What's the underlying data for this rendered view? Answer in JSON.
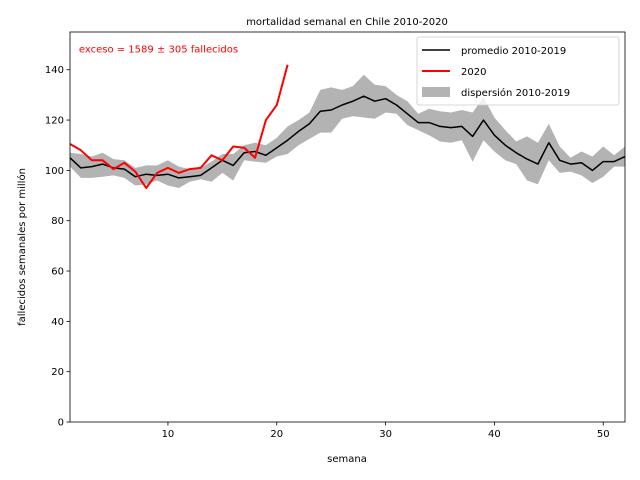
{
  "chart_data": {
    "type": "line",
    "title": "mortalidad semanal en Chile 2010-2020",
    "xlabel": "semana",
    "ylabel": "fallecidos semanales por millón",
    "xlim": [
      1,
      52
    ],
    "ylim": [
      0,
      155
    ],
    "xticks": [
      10,
      20,
      30,
      40,
      50
    ],
    "yticks": [
      0,
      20,
      40,
      60,
      80,
      100,
      120,
      140
    ],
    "grid": false,
    "legend_position": "top-right",
    "annotation": {
      "text": "exceso = 1589 ± 305 fallecidos",
      "color": "#ff0000",
      "x": 2,
      "y": 148
    },
    "colors": {
      "average": "#000000",
      "year2020": "#ff0000",
      "band": "#b3b3b3"
    },
    "series": [
      {
        "name": "promedio 2010-2019",
        "kind": "line",
        "x": [
          1,
          2,
          3,
          4,
          5,
          6,
          7,
          8,
          9,
          10,
          11,
          12,
          13,
          14,
          15,
          16,
          17,
          18,
          19,
          20,
          21,
          22,
          23,
          24,
          25,
          26,
          27,
          28,
          29,
          30,
          31,
          32,
          33,
          34,
          35,
          36,
          37,
          38,
          39,
          40,
          41,
          42,
          43,
          44,
          45,
          46,
          47,
          48,
          49,
          50,
          51,
          52
        ],
        "y": [
          105,
          101,
          101.5,
          102.5,
          101,
          100.5,
          97.5,
          98.5,
          98,
          98.5,
          97,
          97.5,
          98,
          101,
          104,
          102,
          107,
          107.5,
          106,
          109,
          112,
          115.5,
          118.5,
          123.5,
          124,
          126,
          127.5,
          129.5,
          127.5,
          128.5,
          126,
          122.5,
          119,
          119,
          117.5,
          117,
          117.5,
          113.5,
          120,
          114,
          110,
          107,
          104.5,
          102.5,
          111,
          104,
          102.5,
          103,
          100,
          103.5,
          103.5,
          105.5
        ]
      },
      {
        "name": "2020",
        "kind": "line",
        "x": [
          1,
          2,
          3,
          4,
          5,
          6,
          7,
          8,
          9,
          10,
          11,
          12,
          13,
          14,
          15,
          16,
          17,
          18,
          19,
          20,
          21
        ],
        "y": [
          110.5,
          108,
          104,
          104,
          100.5,
          103,
          99.5,
          93,
          99,
          101,
          99,
          100.5,
          101,
          106,
          104,
          109.5,
          109,
          105,
          120,
          126,
          142
        ]
      },
      {
        "name": "dispersión 2010-2019",
        "kind": "band",
        "x": [
          1,
          2,
          3,
          4,
          5,
          6,
          7,
          8,
          9,
          10,
          11,
          12,
          13,
          14,
          15,
          16,
          17,
          18,
          19,
          20,
          21,
          22,
          23,
          24,
          25,
          26,
          27,
          28,
          29,
          30,
          31,
          32,
          33,
          34,
          35,
          36,
          37,
          38,
          39,
          40,
          41,
          42,
          43,
          44,
          45,
          46,
          47,
          48,
          49,
          50,
          51,
          52
        ],
        "upper": [
          107,
          106.5,
          105.5,
          107,
          104.5,
          104,
          101,
          102,
          102,
          104,
          101.5,
          100.5,
          101,
          103.5,
          106.5,
          106.5,
          110,
          111,
          110,
          113,
          117.5,
          120,
          123,
          132,
          133,
          132,
          133.5,
          138,
          134,
          133.5,
          130,
          127.5,
          122.5,
          124.5,
          123.5,
          123,
          124,
          123,
          129,
          121,
          116,
          111.5,
          113.5,
          111,
          118.5,
          109.5,
          105,
          107.5,
          105.5,
          109.5,
          106,
          109.5
        ],
        "lower": [
          101.5,
          97,
          97,
          97.5,
          98,
          97,
          94,
          94.5,
          96,
          94,
          93,
          95.5,
          96.5,
          95.5,
          99,
          96,
          104,
          103.5,
          103,
          105.5,
          106.5,
          110,
          112.5,
          115,
          115,
          120.5,
          121.5,
          121,
          120.5,
          123,
          122.5,
          118,
          116,
          114,
          111.5,
          111,
          112,
          103.5,
          112,
          107.5,
          104,
          102.5,
          96,
          94.5,
          104,
          99,
          99.5,
          98,
          95,
          97.5,
          101.5,
          101.5
        ]
      }
    ]
  }
}
